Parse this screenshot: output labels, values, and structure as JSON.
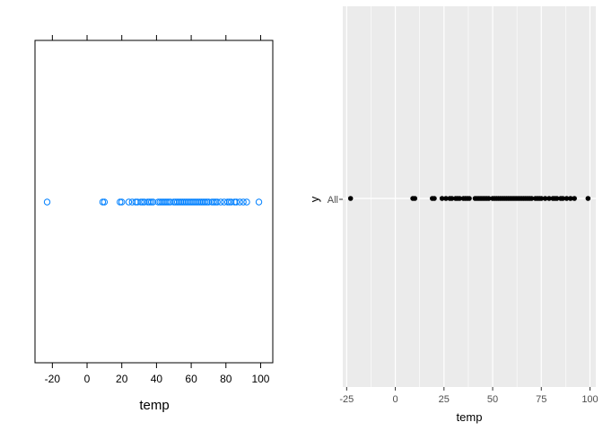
{
  "chart_data": [
    {
      "type": "scatter",
      "style": "lattice-dotplot",
      "xlabel": "temp",
      "ylabel": "",
      "xlim": [
        -30,
        107
      ],
      "xticks": [
        -20,
        0,
        20,
        40,
        60,
        80,
        100
      ],
      "tick_labels": [
        "-20",
        "0",
        "20",
        "40",
        "60",
        "80",
        "100"
      ],
      "marker": "open-circle",
      "marker_color": "#0080ff",
      "grid": false,
      "legend": "none",
      "values": [
        -23,
        9,
        10,
        19,
        20,
        24,
        26,
        28,
        29,
        31,
        32,
        33,
        35,
        36,
        37,
        38,
        41,
        42,
        43,
        44,
        45,
        46,
        47,
        48,
        50,
        51,
        52,
        53,
        54,
        55,
        56,
        57,
        58,
        59,
        60,
        61,
        62,
        63,
        64,
        65,
        66,
        67,
        68,
        69,
        70,
        72,
        73,
        74,
        75,
        77,
        79,
        81,
        82,
        83,
        85,
        86,
        88,
        90,
        92,
        99
      ]
    },
    {
      "type": "scatter",
      "style": "ggplot-dotplot",
      "xlabel": "temp",
      "ylabel": "y",
      "category": "All",
      "xlim": [
        -27,
        103
      ],
      "xticks": [
        -25,
        0,
        25,
        50,
        75,
        100
      ],
      "tick_labels": [
        "-25",
        "0",
        "25",
        "50",
        "75",
        "100"
      ],
      "marker": "filled-circle",
      "marker_color": "#000000",
      "panel_background": "#ebebeb",
      "grid": true,
      "legend": "none",
      "values": [
        -23,
        9,
        10,
        19,
        20,
        24,
        26,
        28,
        29,
        31,
        32,
        33,
        35,
        36,
        37,
        38,
        41,
        42,
        43,
        44,
        45,
        46,
        47,
        48,
        50,
        51,
        52,
        53,
        54,
        55,
        56,
        57,
        58,
        59,
        60,
        61,
        62,
        63,
        64,
        65,
        66,
        67,
        68,
        69,
        70,
        72,
        73,
        74,
        75,
        77,
        79,
        81,
        82,
        83,
        85,
        86,
        88,
        90,
        92,
        99
      ]
    }
  ]
}
